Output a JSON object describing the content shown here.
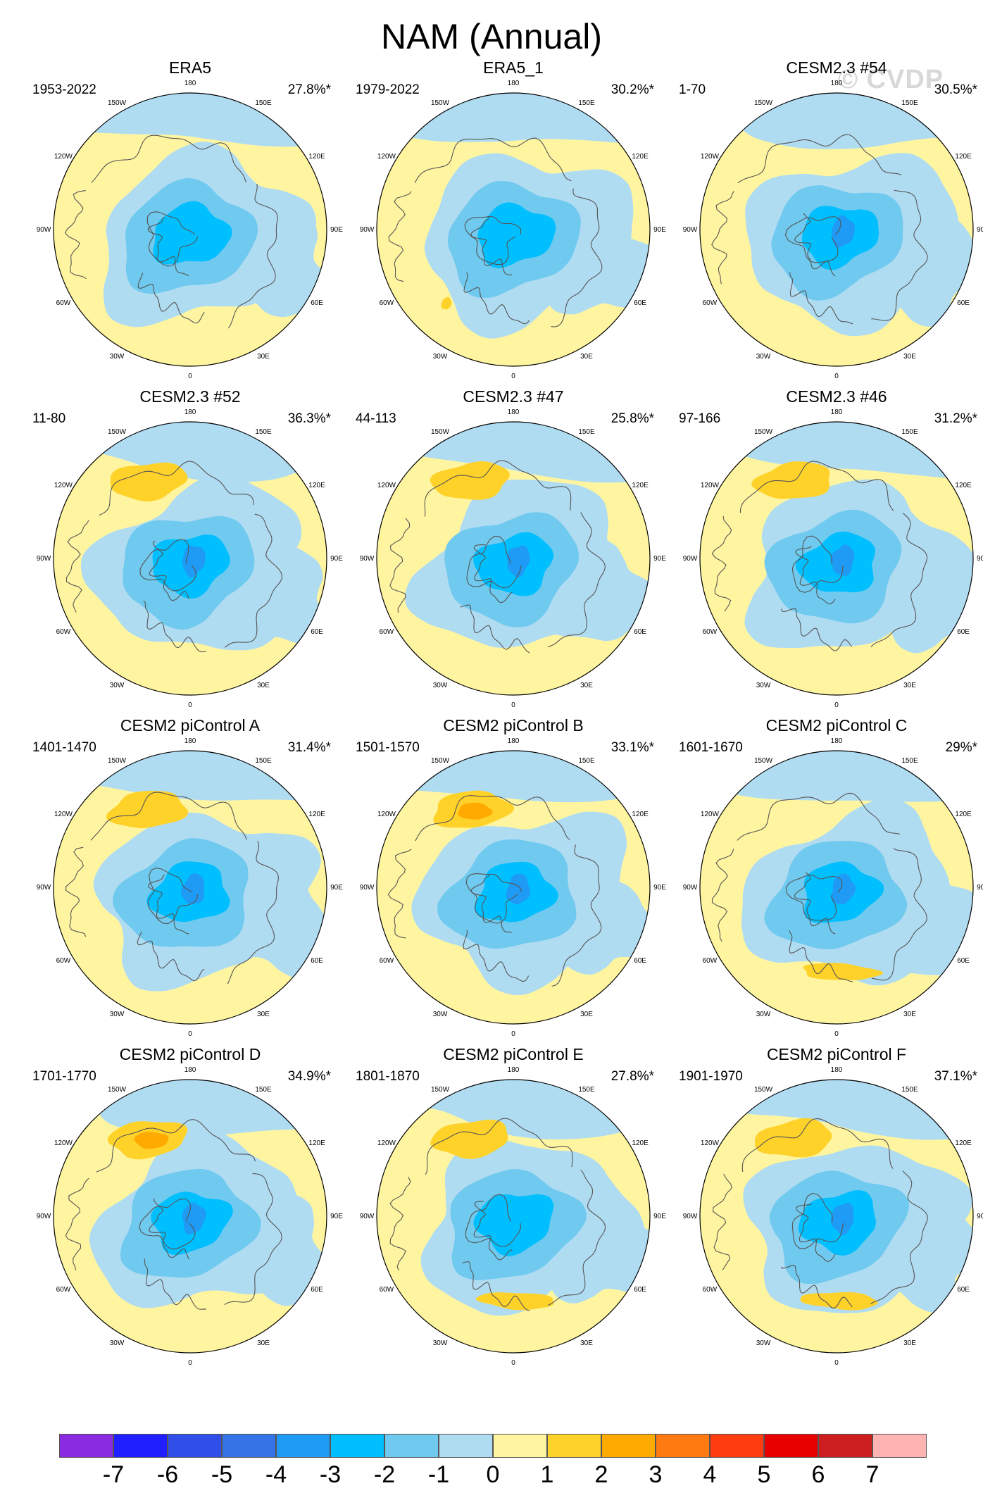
{
  "title": "NAM (Annual)",
  "watermark": "© CVDP",
  "longitude_labels": [
    "180",
    "150E",
    "120E",
    "90E",
    "60E",
    "30E",
    "0",
    "30W",
    "60W",
    "90W",
    "120W",
    "150W"
  ],
  "panels": [
    {
      "title": "ERA5",
      "years": "1953-2022",
      "pct": "27.8%*",
      "pos": {
        "min": 0,
        "max": 0,
        "features": []
      },
      "neg": {
        "min": -2.9,
        "features": [
          "arctic-core"
        ]
      }
    },
    {
      "title": "ERA5_1",
      "years": "1979-2022",
      "pct": "30.2%*",
      "pos": {
        "max": 1.1,
        "features": [
          "atlantic-small"
        ]
      },
      "neg": {
        "min": -2.8,
        "features": [
          "arctic-core"
        ]
      }
    },
    {
      "title": "CESM2.3 #54",
      "years": "1-70",
      "pct": "30.5%*",
      "pos": {
        "max": 0,
        "features": []
      },
      "neg": {
        "min": -3.2,
        "features": [
          "arctic-core"
        ]
      }
    },
    {
      "title": "CESM2.3 #52",
      "years": "11-80",
      "pct": "36.3%*",
      "pos": {
        "max": 1.4,
        "features": [
          "pacific-lobe"
        ]
      },
      "neg": {
        "min": -3.3,
        "features": [
          "arctic-core"
        ]
      }
    },
    {
      "title": "CESM2.3 #47",
      "years": "44-113",
      "pct": "25.8%*",
      "pos": {
        "max": 1.3,
        "features": [
          "pacific-lobe"
        ]
      },
      "neg": {
        "min": -3.1,
        "features": [
          "arctic-core"
        ]
      }
    },
    {
      "title": "CESM2.3 #46",
      "years": "97-166",
      "pct": "31.2%*",
      "pos": {
        "max": 1.2,
        "features": [
          "pacific-lobe"
        ]
      },
      "neg": {
        "min": -3.2,
        "features": [
          "arctic-core"
        ]
      }
    },
    {
      "title": "CESM2 piControl A",
      "years": "1401-1470",
      "pct": "31.4%*",
      "pos": {
        "max": 1.6,
        "features": [
          "pacific-lobe"
        ]
      },
      "neg": {
        "min": -3.1,
        "features": [
          "arctic-core"
        ]
      }
    },
    {
      "title": "CESM2 piControl B",
      "years": "1501-1570",
      "pct": "33.1%*",
      "pos": {
        "max": 2.2,
        "features": [
          "pacific-lobe"
        ]
      },
      "neg": {
        "min": -3.3,
        "features": [
          "arctic-core"
        ]
      }
    },
    {
      "title": "CESM2 piControl C",
      "years": "1601-1670",
      "pct": "29%*",
      "pos": {
        "max": 1.2,
        "features": [
          "atlantic-band"
        ]
      },
      "neg": {
        "min": -3.1,
        "features": [
          "arctic-core"
        ]
      }
    },
    {
      "title": "CESM2 piControl D",
      "years": "1701-1770",
      "pct": "34.9%*",
      "pos": {
        "max": 2.6,
        "features": [
          "pacific-lobe"
        ]
      },
      "neg": {
        "min": -3.2,
        "features": [
          "arctic-core"
        ]
      }
    },
    {
      "title": "CESM2 piControl E",
      "years": "1801-1870",
      "pct": "27.8%*",
      "pos": {
        "max": 1.3,
        "features": [
          "pacific-lobe",
          "atlantic-band"
        ]
      },
      "neg": {
        "min": -2.9,
        "features": [
          "arctic-core"
        ]
      }
    },
    {
      "title": "CESM2 piControl F",
      "years": "1901-1970",
      "pct": "37.1%*",
      "pos": {
        "max": 1.5,
        "features": [
          "pacific-lobe",
          "atlantic-band"
        ]
      },
      "neg": {
        "min": -3.4,
        "features": [
          "arctic-core"
        ]
      }
    }
  ],
  "colorbar": {
    "labels": [
      "-7",
      "-6",
      "-5",
      "-4",
      "-3",
      "-2",
      "-1",
      "0",
      "1",
      "2",
      "3",
      "4",
      "5",
      "6",
      "7"
    ],
    "colors": [
      "#8a2be2",
      "#1f1fff",
      "#2f4fe8",
      "#3574e6",
      "#1f9bf5",
      "#00bfff",
      "#70c9ef",
      "#b0dcf2",
      "#fff5a0",
      "#ffd22a",
      "#ffaa00",
      "#ff7a10",
      "#ff3c10",
      "#e80000",
      "#cc1e1e",
      "#ffb4b4"
    ]
  }
}
